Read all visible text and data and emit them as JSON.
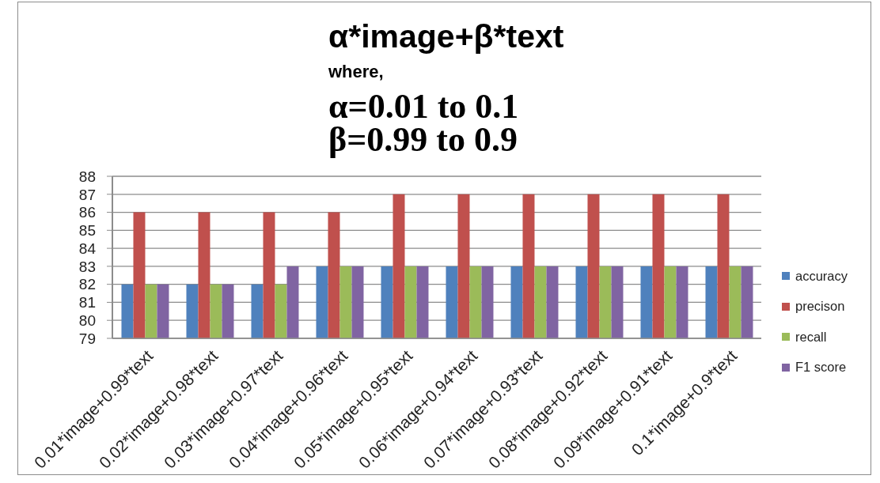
{
  "chart_data": {
    "type": "bar",
    "title": "α*image+β*text",
    "subtitle": "where,",
    "annotations": [
      "α=0.01 to 0.1",
      "β=0.99 to 0.9"
    ],
    "categories": [
      "0.01*image+0.99*text",
      "0.02*image+0.98*text",
      "0.03*image+0.97*text",
      "0.04*image+0.96*text",
      "0.05*image+0.95*text",
      "0.06*image+0.94*text",
      "0.07*image+0.93*text",
      "0.08*image+0.92*text",
      "0.09*image+0.91*text",
      "0.1*image+0.9*text"
    ],
    "series": [
      {
        "name": "accuracy",
        "color": "#4f81bd",
        "values": [
          82,
          82,
          82,
          83,
          83,
          83,
          83,
          83,
          83,
          83
        ]
      },
      {
        "name": "precison",
        "color": "#c0504d",
        "values": [
          86,
          86,
          86,
          86,
          87,
          87,
          87,
          87,
          87,
          87
        ]
      },
      {
        "name": "recall",
        "color": "#9bbb59",
        "values": [
          82,
          82,
          82,
          83,
          83,
          83,
          83,
          83,
          83,
          83
        ]
      },
      {
        "name": "F1 score",
        "color": "#8064a2",
        "values": [
          82,
          82,
          83,
          83,
          83,
          83,
          83,
          83,
          83,
          83
        ]
      }
    ],
    "ylim": [
      79,
      88
    ],
    "yticks": [
      79,
      80,
      81,
      82,
      83,
      84,
      85,
      86,
      87,
      88
    ],
    "grid": "y",
    "legend": "right"
  }
}
